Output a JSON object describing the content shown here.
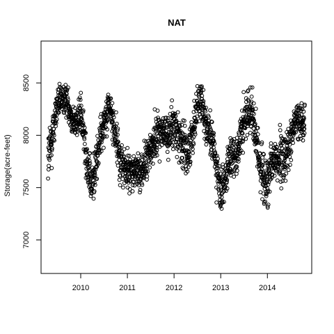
{
  "chart_data": {
    "type": "scatter",
    "title": "NAT",
    "xlabel": "",
    "ylabel": "Storage(acre-feet)",
    "xlim": [
      2009.15,
      2014.95
    ],
    "ylim": [
      6680,
      8900
    ],
    "x_ticks": [
      2010,
      2011,
      2012,
      2013,
      2014
    ],
    "x_tick_labels": [
      "2010",
      "2011",
      "2012",
      "2013",
      "2014"
    ],
    "y_ticks": [
      7000,
      7500,
      8000,
      8500
    ],
    "y_tick_labels": [
      "7000",
      "7500",
      "8000",
      "8500"
    ],
    "grid": false,
    "legend": "none",
    "marker": "open-circle",
    "colors": {
      "points": "#000000",
      "axes": "#000000",
      "background": "#ffffff"
    },
    "x_range": [
      2009.3,
      2014.8
    ],
    "anchors": [
      [
        2009.3,
        7750,
        400
      ],
      [
        2009.5,
        8300,
        200
      ],
      [
        2009.7,
        8350,
        180
      ],
      [
        2009.85,
        8100,
        180
      ],
      [
        2010.0,
        8200,
        250
      ],
      [
        2010.1,
        7900,
        300
      ],
      [
        2010.22,
        7500,
        250
      ],
      [
        2010.32,
        7700,
        300
      ],
      [
        2010.45,
        8050,
        250
      ],
      [
        2010.6,
        8300,
        200
      ],
      [
        2010.75,
        8000,
        300
      ],
      [
        2010.85,
        7750,
        280
      ],
      [
        2011.0,
        7650,
        250
      ],
      [
        2011.15,
        7650,
        220
      ],
      [
        2011.3,
        7650,
        220
      ],
      [
        2011.45,
        7800,
        250
      ],
      [
        2011.65,
        8050,
        250
      ],
      [
        2011.85,
        8000,
        250
      ],
      [
        2012.0,
        8100,
        250
      ],
      [
        2012.15,
        7950,
        300
      ],
      [
        2012.3,
        7800,
        250
      ],
      [
        2012.5,
        8300,
        250
      ],
      [
        2012.6,
        8350,
        250
      ],
      [
        2012.7,
        8050,
        250
      ],
      [
        2012.85,
        7900,
        250
      ],
      [
        2013.0,
        7400,
        300
      ],
      [
        2013.15,
        7700,
        250
      ],
      [
        2013.35,
        7850,
        300
      ],
      [
        2013.5,
        8100,
        300
      ],
      [
        2013.65,
        8300,
        250
      ],
      [
        2013.8,
        7800,
        300
      ],
      [
        2014.0,
        7500,
        350
      ],
      [
        2014.15,
        7800,
        300
      ],
      [
        2014.3,
        7750,
        300
      ],
      [
        2014.45,
        7850,
        300
      ],
      [
        2014.6,
        8150,
        200
      ],
      [
        2014.8,
        8150,
        200
      ]
    ],
    "n_points": 1950,
    "seed": 12345
  }
}
